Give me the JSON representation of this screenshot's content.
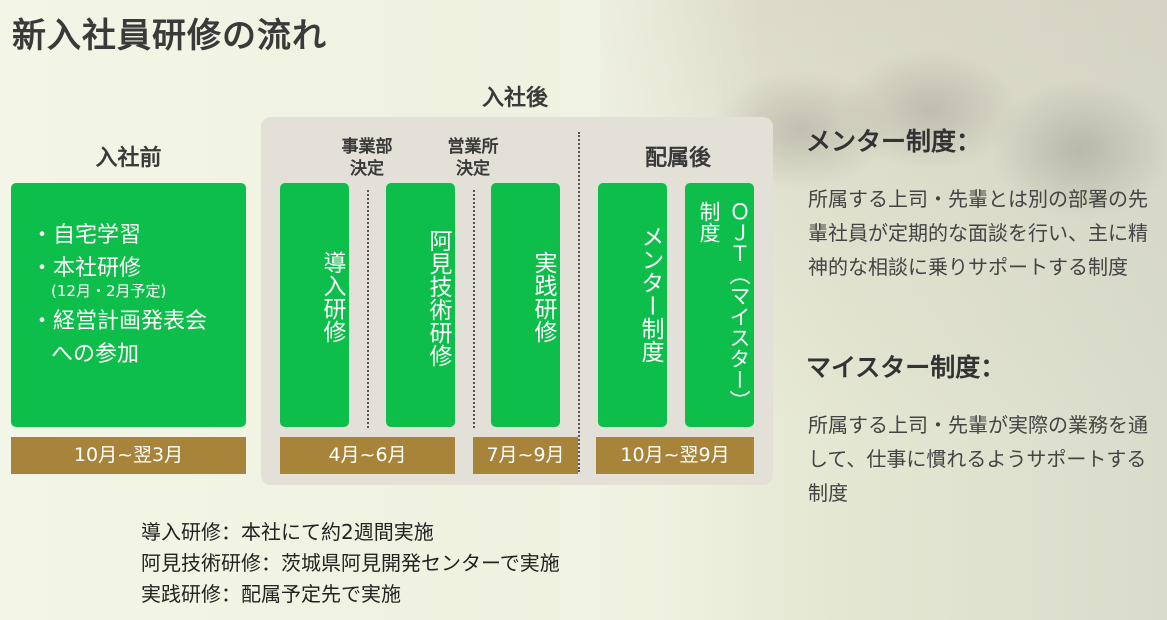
{
  "title": "新入社員研修の流れ",
  "after_joining_label": "入社後",
  "pre_join": {
    "header": "入社前",
    "items": [
      "・自宅学習",
      "・本社研修",
      "・経営計画発表会"
    ],
    "items_sub": "(12月・2月予定)",
    "items_cont": "への参加",
    "period": "10月~翌3月"
  },
  "post_join": {
    "decision1": "事業部\n決定",
    "decision2": "営業所\n決定",
    "assigned_header": "配属後",
    "boxes": [
      "導入研修",
      "阿見技術研修",
      "実践研修",
      "メンター制度",
      "ＯＪＴ（マイスター）制度"
    ],
    "periods": [
      "4月~6月",
      "7月~9月",
      "10月~翌9月"
    ]
  },
  "side": {
    "mentor_heading": "メンター制度：",
    "mentor_text": "所属する上司・先輩とは別の部署の先輩社員が定期的な面談を行い、主に精神的な相談に乗りサポートする制度",
    "meister_heading": "マイスター制度：",
    "meister_text": "所属する上司・先輩が実際の業務を通して、仕事に慣れるようサポートする制度"
  },
  "notes": [
    "導入研修：本社にて約2週間実施",
    "阿見技術研修：茨城県阿見開発センターで実施",
    "実践研修：配属予定先で実施"
  ],
  "colors": {
    "green": "#0ebe4a",
    "gold": "#a8843a",
    "panel": "#e3e0d7"
  }
}
